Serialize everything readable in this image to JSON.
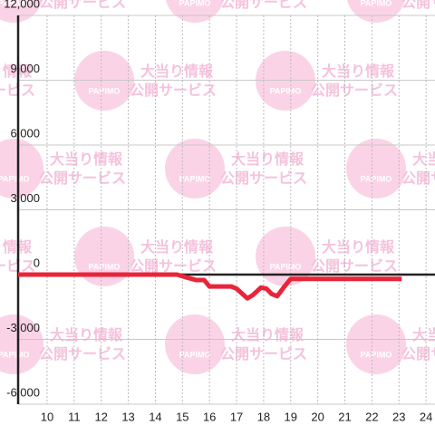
{
  "chart_data": {
    "type": "line",
    "watermark": {
      "logo": "PAPIMO",
      "line1": "大当り情報",
      "line2": "公開サービス"
    },
    "xlim": [
      8.93,
      24.33
    ],
    "xticks": [
      10,
      11,
      12,
      13,
      14,
      15,
      16,
      17,
      18,
      19,
      20,
      21,
      22,
      23,
      24
    ],
    "ylim": [
      -6000,
      12000
    ],
    "yticks": [
      {
        "value": -6000,
        "label": "-6,000"
      },
      {
        "value": -3000,
        "label": "-3,000"
      },
      0,
      {
        "value": 3000,
        "label": "3,000"
      },
      {
        "value": 6000,
        "label": "6,000"
      },
      {
        "value": 9000,
        "label": "9,000"
      },
      {
        "value": 12000,
        "label": "12,000"
      }
    ],
    "grid": true,
    "series": [
      {
        "color": "#e8253a",
        "x": [
          8.93,
          14.8,
          15.2,
          15.5,
          15.8,
          16.0,
          16.8,
          17.0,
          17.4,
          17.6,
          17.9,
          18.1,
          18.3,
          18.5,
          18.8,
          19.0,
          23.1
        ],
        "values": [
          0,
          0,
          -150,
          -250,
          -250,
          -550,
          -550,
          -650,
          -1100,
          -950,
          -600,
          -650,
          -900,
          -1000,
          -500,
          -200,
          -200
        ]
      }
    ]
  }
}
